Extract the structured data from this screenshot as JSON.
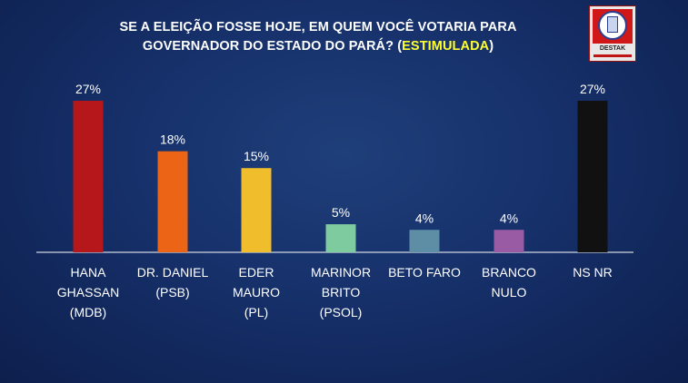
{
  "title": {
    "line1": "SE A ELEIÇÃO FOSSE HOJE, EM QUEM VOCÊ VOTARIA PARA",
    "line2_main": "GOVERNADOR DO ESTADO DO PARÁ? (",
    "line2_highlight": "ESTIMULADA",
    "line2_end": ")"
  },
  "logo": {
    "name": "DESTAK",
    "icon": "ballot-logo-icon"
  },
  "colors": {
    "background": "#16306a",
    "title_highlight": "#ffff2e",
    "axis": "#ffffff"
  },
  "chart_data": {
    "type": "bar",
    "title": "SE A ELEIÇÃO FOSSE HOJE, EM QUEM VOCÊ VOTARIA PARA GOVERNADOR DO ESTADO DO PARÁ? (ESTIMULADA)",
    "categories": [
      [
        "HANA",
        "GHASSAN",
        "(MDB)"
      ],
      [
        "DR. DANIEL",
        "(PSB)"
      ],
      [
        "EDER",
        "MAURO",
        "(PL)"
      ],
      [
        "MARINOR",
        "BRITO",
        "(PSOL)"
      ],
      [
        "BETO FARO"
      ],
      [
        "BRANCO",
        "NULO"
      ],
      [
        "NS NR"
      ]
    ],
    "values": [
      27,
      18,
      15,
      5,
      4,
      4,
      27
    ],
    "value_labels": [
      "27%",
      "18%",
      "15%",
      "5%",
      "4%",
      "4%",
      "27%"
    ],
    "bar_colors": [
      "#b5171b",
      "#ec6415",
      "#f0bd2d",
      "#7fcba0",
      "#5e8ea6",
      "#9a5ba5",
      "#111111"
    ],
    "ylim": [
      0,
      27
    ],
    "grid": false,
    "legend": "none"
  }
}
